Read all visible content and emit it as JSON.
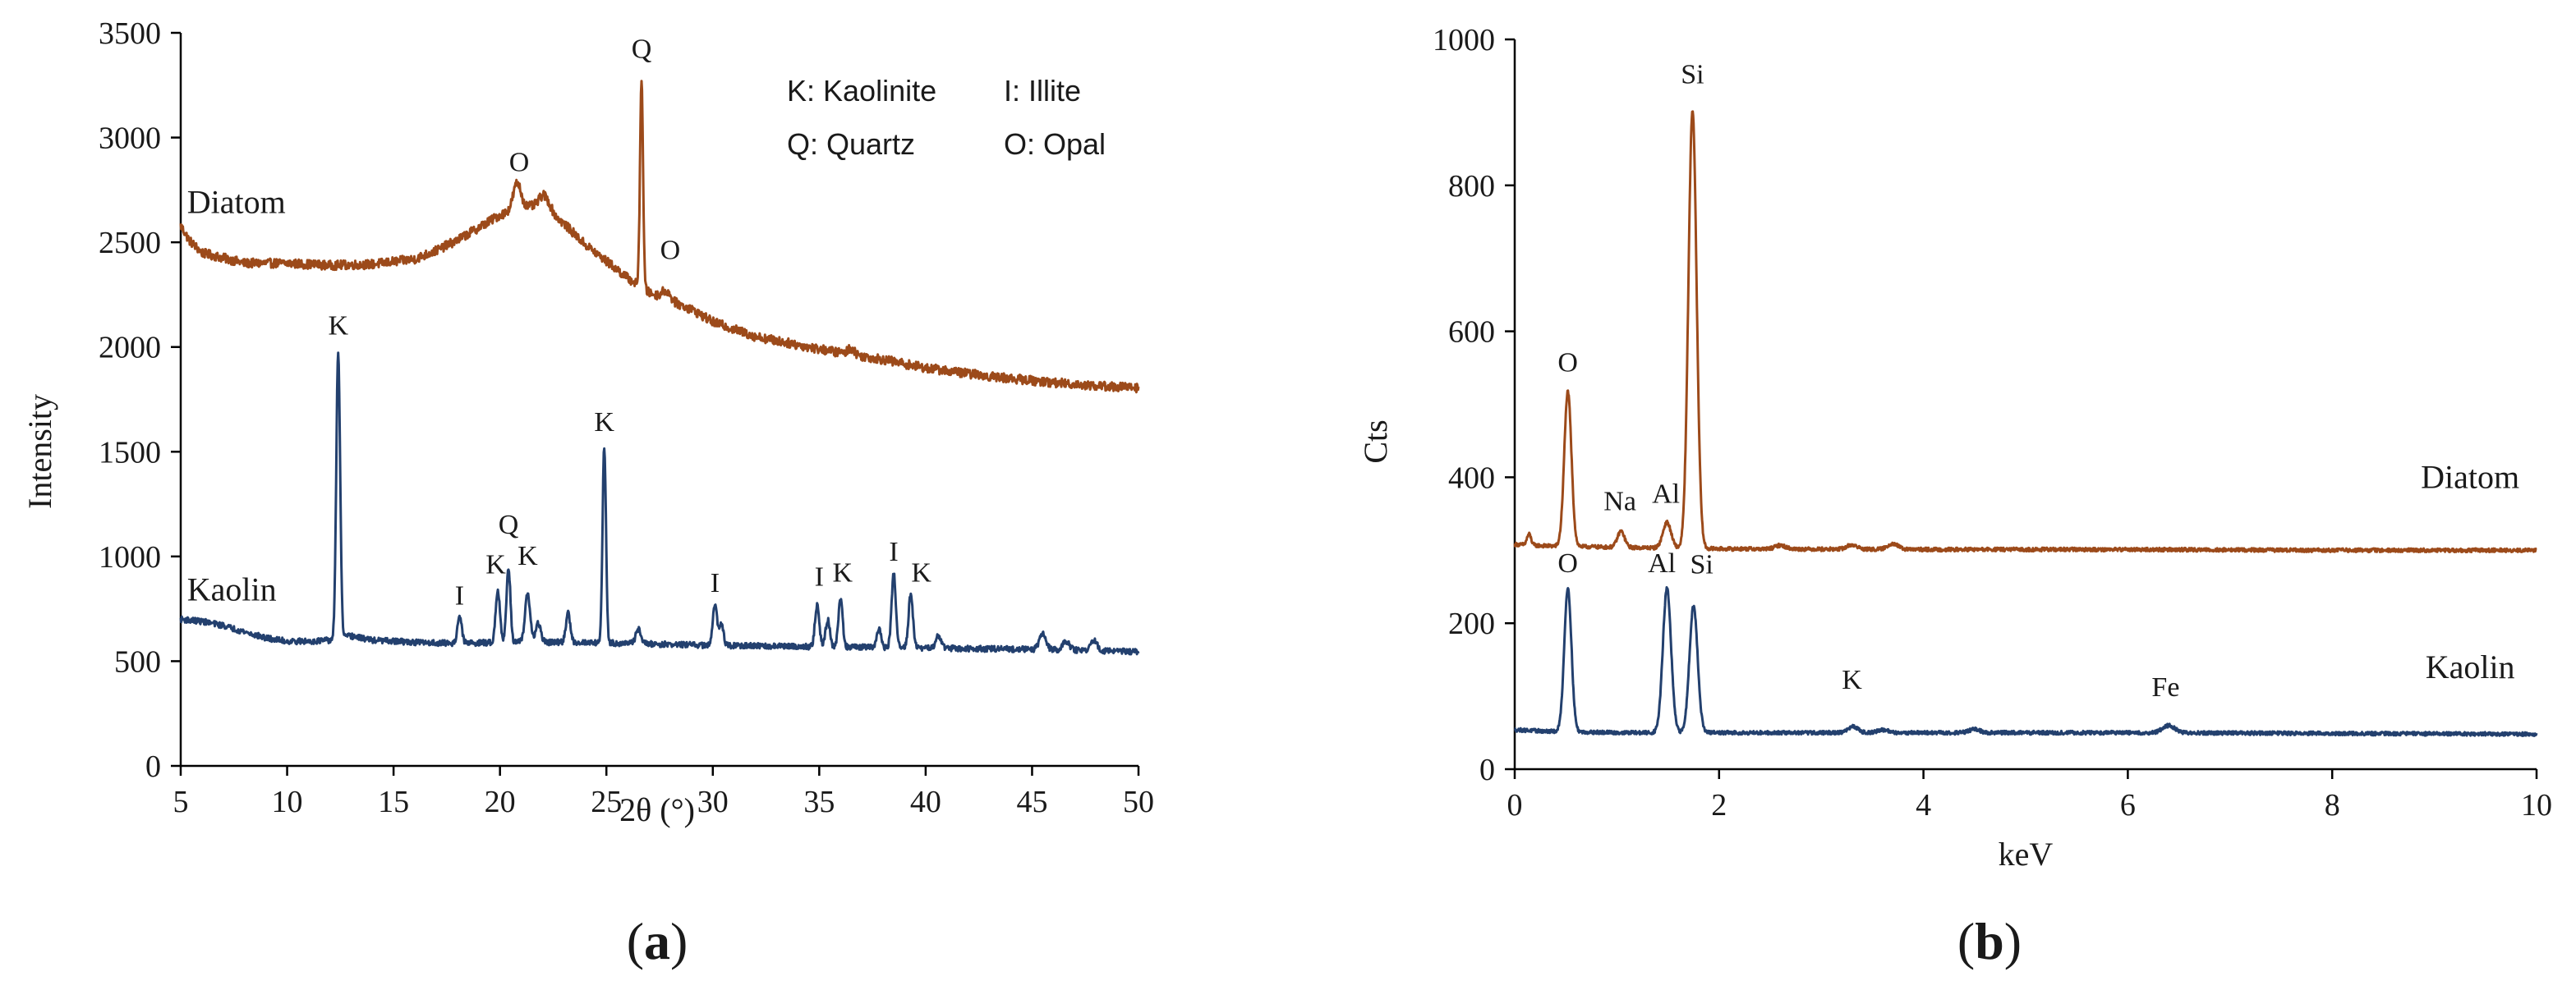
{
  "colors": {
    "diatom": "#9c4a1a",
    "kaolin": "#23406e",
    "axis": "#000000"
  },
  "chart_data": [
    {
      "type": "line",
      "panel_label": "a",
      "xlabel": "2θ (°)",
      "ylabel": "Intensity",
      "xlim": [
        5,
        50
      ],
      "ylim": [
        0,
        3500
      ],
      "x_ticks": [
        "5",
        "10",
        "15",
        "20",
        "25",
        "30",
        "35",
        "40",
        "45",
        "50"
      ],
      "y_ticks": [
        "0",
        "500",
        "1000",
        "1500",
        "2000",
        "2500",
        "3000",
        "3500"
      ],
      "legend": [
        {
          "text": "K: Kaolinite"
        },
        {
          "text": "I:  Illite"
        },
        {
          "text": "Q: Quartz"
        },
        {
          "text": "O: Opal"
        }
      ],
      "series": [
        {
          "name": "Diatom",
          "color": "#9c4a1a",
          "baseline": [
            [
              5,
              2580
            ],
            [
              5.4,
              2510
            ],
            [
              6,
              2450
            ],
            [
              8,
              2400
            ],
            [
              10,
              2400
            ],
            [
              12,
              2390
            ],
            [
              14,
              2395
            ],
            [
              16,
              2420
            ],
            [
              17,
              2460
            ],
            [
              18,
              2510
            ],
            [
              19,
              2570
            ],
            [
              20,
              2630
            ],
            [
              21,
              2670
            ],
            [
              22,
              2670
            ],
            [
              23,
              2590
            ],
            [
              24,
              2490
            ],
            [
              25,
              2410
            ],
            [
              26,
              2330
            ],
            [
              27,
              2260
            ],
            [
              28,
              2220
            ],
            [
              29,
              2180
            ],
            [
              30,
              2120
            ],
            [
              32,
              2050
            ],
            [
              35,
              1990
            ],
            [
              38,
              1940
            ],
            [
              40,
              1900
            ],
            [
              43,
              1860
            ],
            [
              46,
              1830
            ],
            [
              48,
              1815
            ],
            [
              50,
              1805
            ]
          ],
          "peaks": [
            [
              20.8,
              120,
              0.18
            ],
            [
              22.1,
              60,
              0.25
            ],
            [
              26.65,
              1000,
              0.07
            ],
            [
              27.8,
              40,
              0.2
            ],
            [
              36.5,
              30,
              0.15
            ]
          ],
          "noise": 22,
          "labels": [
            {
              "text": "Diatom",
              "x": 5.3,
              "y": 2640
            },
            {
              "text": "Q",
              "x": 26.65,
              "y": 3380
            },
            {
              "text": "O",
              "x": 20.9,
              "y": 2840
            },
            {
              "text": "O",
              "x": 28.0,
              "y": 2420
            }
          ]
        },
        {
          "name": "Kaolin",
          "color": "#23406e",
          "baseline": [
            [
              5,
              700
            ],
            [
              6,
              690
            ],
            [
              7,
              670
            ],
            [
              8,
              640
            ],
            [
              9,
              610
            ],
            [
              10,
              595
            ],
            [
              11,
              595
            ],
            [
              12,
              600
            ],
            [
              13,
              620
            ],
            [
              14,
              600
            ],
            [
              16,
              590
            ],
            [
              18,
              585
            ],
            [
              20,
              590
            ],
            [
              24,
              590
            ],
            [
              28,
              580
            ],
            [
              30,
              575
            ],
            [
              34,
              570
            ],
            [
              38,
              565
            ],
            [
              42,
              560
            ],
            [
              46,
              555
            ],
            [
              50,
              545
            ]
          ],
          "peaks": [
            [
              12.4,
              1370,
              0.09
            ],
            [
              18.1,
              130,
              0.1
            ],
            [
              19.9,
              250,
              0.1
            ],
            [
              20.4,
              360,
              0.09
            ],
            [
              21.3,
              230,
              0.12
            ],
            [
              21.8,
              90,
              0.12
            ],
            [
              23.2,
              140,
              0.1
            ],
            [
              24.9,
              940,
              0.08
            ],
            [
              26.5,
              70,
              0.12
            ],
            [
              30.1,
              190,
              0.1
            ],
            [
              30.4,
              110,
              0.1
            ],
            [
              34.9,
              200,
              0.1
            ],
            [
              35.4,
              130,
              0.1
            ],
            [
              36.0,
              230,
              0.1
            ],
            [
              37.8,
              90,
              0.1
            ],
            [
              38.5,
              350,
              0.1
            ],
            [
              39.3,
              260,
              0.1
            ],
            [
              40.6,
              60,
              0.12
            ],
            [
              45.5,
              80,
              0.15
            ],
            [
              46.6,
              40,
              0.15
            ],
            [
              47.9,
              50,
              0.15
            ]
          ],
          "noise": 14,
          "labels": [
            {
              "text": "Kaolin",
              "x": 5.3,
              "y": 790
            },
            {
              "text": "K",
              "x": 12.4,
              "y": 2060
            },
            {
              "text": "I",
              "x": 18.1,
              "y": 770
            },
            {
              "text": "K",
              "x": 19.8,
              "y": 920
            },
            {
              "text": "Q",
              "x": 20.4,
              "y": 1110
            },
            {
              "text": "K",
              "x": 21.3,
              "y": 960
            },
            {
              "text": "K",
              "x": 24.9,
              "y": 1600
            },
            {
              "text": "I",
              "x": 30.1,
              "y": 830
            },
            {
              "text": "I",
              "x": 35.0,
              "y": 860
            },
            {
              "text": "K",
              "x": 36.1,
              "y": 880
            },
            {
              "text": "I",
              "x": 38.5,
              "y": 980
            },
            {
              "text": "K",
              "x": 39.8,
              "y": 880
            }
          ]
        }
      ]
    },
    {
      "type": "line",
      "panel_label": "b",
      "xlabel": "keV",
      "ylabel": "Cts",
      "xlim": [
        0,
        10
      ],
      "ylim": [
        0,
        1000
      ],
      "x_ticks": [
        "0",
        "2",
        "4",
        "6",
        "8",
        "10"
      ],
      "y_ticks": [
        "0",
        "200",
        "400",
        "600",
        "800",
        "1000"
      ],
      "series": [
        {
          "name": "Diatom",
          "color": "#9c4a1a",
          "baseline": [
            [
              0,
              308
            ],
            [
              0.3,
              306
            ],
            [
              1,
              304
            ],
            [
              2,
              302
            ],
            [
              4,
              301
            ],
            [
              6,
              301
            ],
            [
              8,
              300
            ],
            [
              10,
              300
            ]
          ],
          "peaks": [
            [
              0.14,
              15,
              0.02
            ],
            [
              0.52,
              212,
              0.035
            ],
            [
              1.04,
              22,
              0.035
            ],
            [
              1.49,
              35,
              0.04
            ],
            [
              1.74,
              600,
              0.04
            ],
            [
              2.6,
              5,
              0.05
            ],
            [
              3.3,
              6,
              0.05
            ],
            [
              3.7,
              8,
              0.05
            ]
          ],
          "noise": 2.5,
          "labels": [
            {
              "text": "Si",
              "x": 1.74,
              "y": 940
            },
            {
              "text": "O",
              "x": 0.52,
              "y": 545
            },
            {
              "text": "Na",
              "x": 1.03,
              "y": 355
            },
            {
              "text": "Al",
              "x": 1.48,
              "y": 365
            },
            {
              "text": "Diatom",
              "x": 9.35,
              "y": 385
            }
          ]
        },
        {
          "name": "Kaolin",
          "color": "#23406e",
          "baseline": [
            [
              0,
              54
            ],
            [
              0.3,
              52
            ],
            [
              1,
              50
            ],
            [
              2,
              50
            ],
            [
              4,
              50
            ],
            [
              6,
              50
            ],
            [
              8,
              49
            ],
            [
              10,
              48
            ]
          ],
          "peaks": [
            [
              0.52,
              197,
              0.035
            ],
            [
              1.49,
              198,
              0.04
            ],
            [
              1.75,
              174,
              0.04
            ],
            [
              3.31,
              8,
              0.05
            ],
            [
              3.6,
              4,
              0.05
            ],
            [
              4.5,
              5,
              0.05
            ],
            [
              6.4,
              10,
              0.06
            ]
          ],
          "noise": 2.5,
          "labels": [
            {
              "text": "O",
              "x": 0.52,
              "y": 270
            },
            {
              "text": "Al",
              "x": 1.44,
              "y": 270
            },
            {
              "text": "Si",
              "x": 1.83,
              "y": 268
            },
            {
              "text": "K",
              "x": 3.3,
              "y": 110
            },
            {
              "text": "Fe",
              "x": 6.37,
              "y": 100
            },
            {
              "text": "Kaolin",
              "x": 9.35,
              "y": 125
            }
          ]
        }
      ]
    }
  ]
}
